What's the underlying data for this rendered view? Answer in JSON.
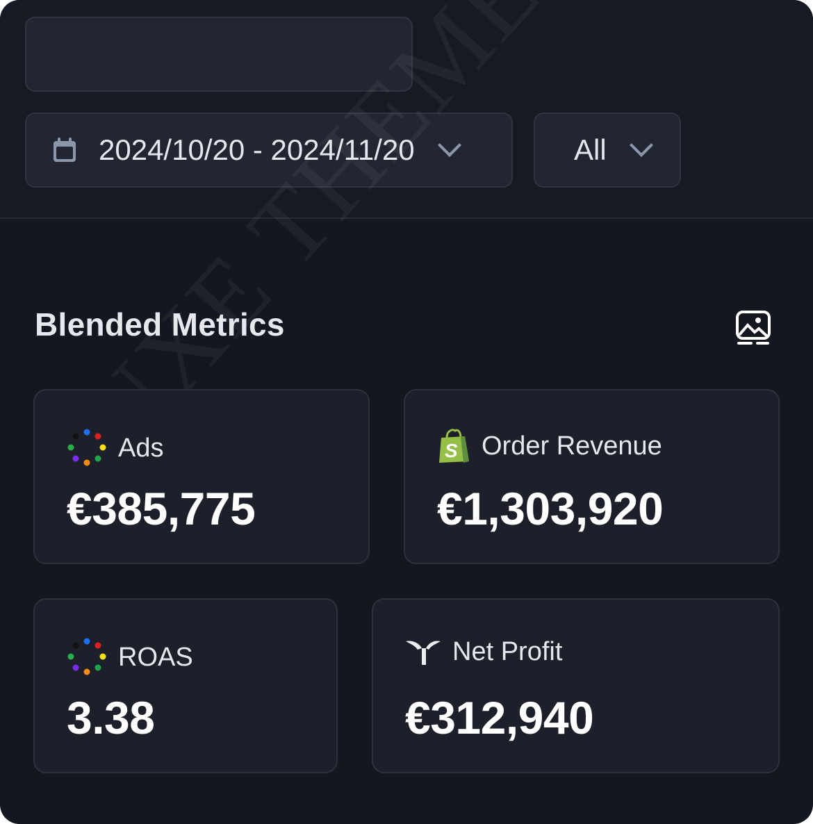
{
  "filters": {
    "date_range": "2024/10/20 - 2024/11/20",
    "channel": "All"
  },
  "section": {
    "title": "Blended Metrics"
  },
  "metrics": [
    {
      "label": "Ads",
      "value": "€385,775",
      "icon": "multi-color-dots-icon"
    },
    {
      "label": "Order Revenue",
      "value": "€1,303,920",
      "icon": "shopify-icon"
    },
    {
      "label": "ROAS",
      "value": "3.38",
      "icon": "multi-color-dots-icon"
    },
    {
      "label": "Net Profit",
      "value": "€312,940",
      "icon": "triple-whale-icon"
    }
  ],
  "watermark": "LUXE THEMES & CO.",
  "colors": {
    "background": "#14171f",
    "card": "#1d202a",
    "shopify_green": "#95bf47"
  }
}
